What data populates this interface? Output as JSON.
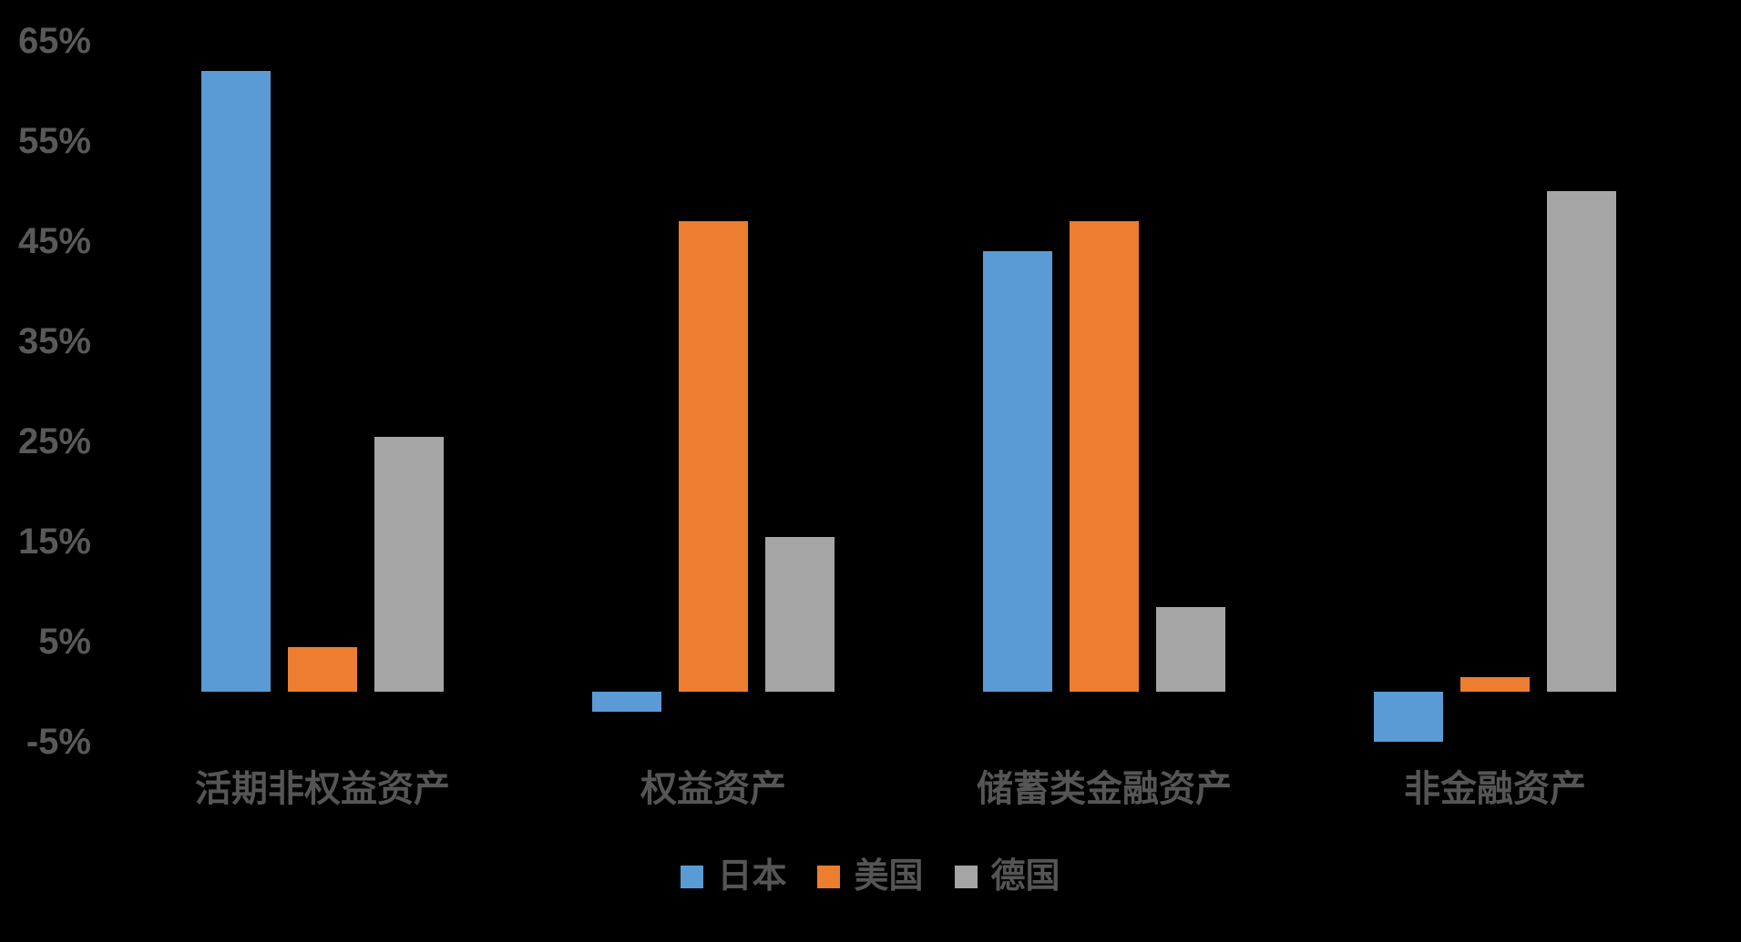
{
  "chart_data": {
    "type": "bar",
    "title": "",
    "xlabel": "",
    "ylabel": "",
    "background_color": "#000000",
    "label_color": "#595959",
    "grid": false,
    "legend_position": "bottom-center",
    "categories": [
      "活期非权益资产",
      "权益资产",
      "储蓄类金融资产",
      "非金融资产"
    ],
    "series": [
      {
        "key": "japan",
        "name": "日本",
        "color": "#5B9BD5",
        "values": [
          62,
          -2,
          44,
          -5
        ]
      },
      {
        "key": "usa",
        "name": "美国",
        "color": "#ED7D31",
        "values": [
          4.5,
          47,
          47,
          1.5
        ]
      },
      {
        "key": "germany",
        "name": "德国",
        "color": "#A5A5A5",
        "values": [
          25.5,
          15.5,
          8.5,
          50
        ]
      }
    ],
    "y_axis": {
      "unit": "%",
      "min": -5,
      "max": 65,
      "tick_step": 10,
      "tick_labels": [
        "65%",
        "55%",
        "45%",
        "35%",
        "25%",
        "15%",
        "5%",
        "-5%"
      ],
      "tick_values": [
        65,
        55,
        45,
        35,
        25,
        15,
        5,
        -5
      ]
    }
  }
}
